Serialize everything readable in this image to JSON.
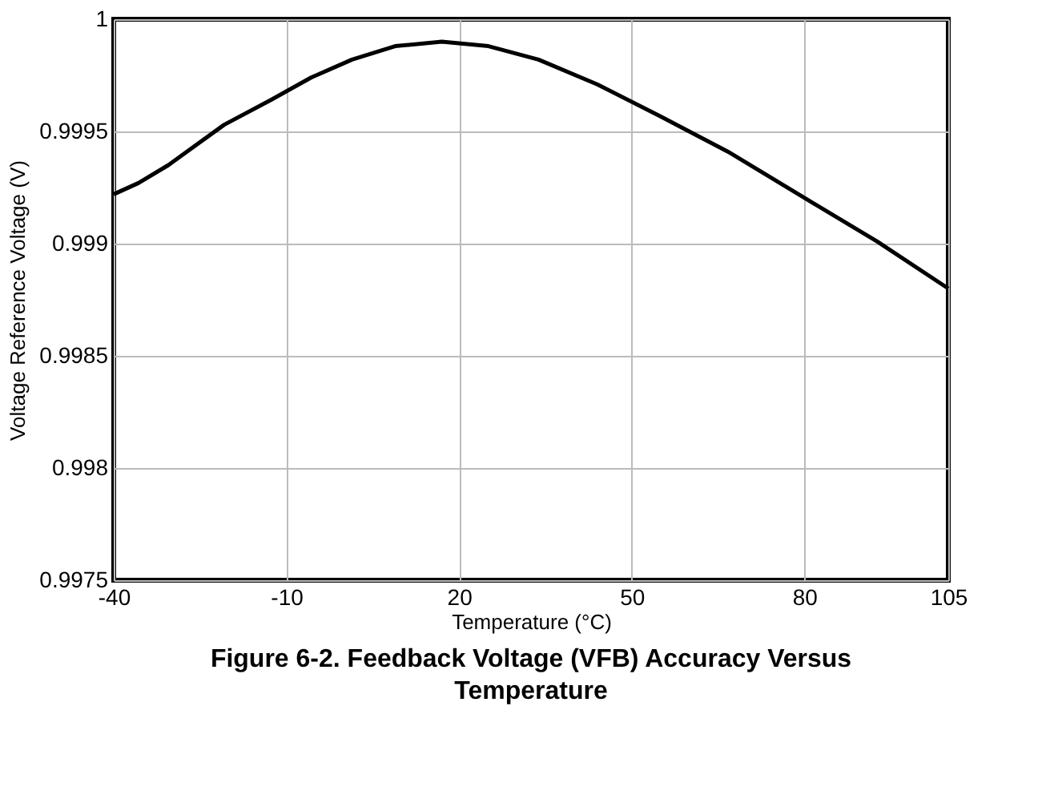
{
  "chart_data": {
    "type": "line",
    "title": "Figure 6-2. Feedback Voltage (VFB) Accuracy Versus Temperature",
    "xlabel": "Temperature (°C)",
    "ylabel": "Voltage Reference Voltage (V)",
    "x": [
      -40,
      -35.7,
      -30.5,
      -20.8,
      -12.7,
      -5.7,
      1.4,
      8.9,
      17.0,
      25.1,
      33.8,
      44.0,
      54.8,
      66.7,
      79.6,
      92.6,
      105
    ],
    "series": [
      {
        "color": "#000000",
        "values": [
          0.99922,
          0.99927,
          0.99935,
          0.99953,
          0.99964,
          0.99974,
          0.99982,
          0.99988,
          0.9999,
          0.99988,
          0.99982,
          0.99971,
          0.99957,
          0.99941,
          0.99921,
          0.99901,
          0.9988
        ]
      }
    ],
    "xlim": [
      -40,
      105
    ],
    "xticks": [
      -40,
      -10,
      20,
      50,
      80,
      105
    ],
    "ylim": [
      0.9975,
      1
    ],
    "yticks": [
      0.9975,
      0.998,
      0.9985,
      0.999,
      0.9995,
      1
    ],
    "grid": true,
    "marker": "none",
    "line_style": "solid"
  }
}
